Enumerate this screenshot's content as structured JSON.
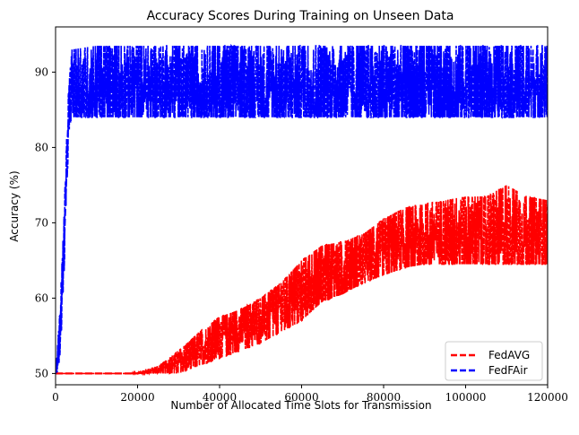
{
  "chart_data": {
    "type": "line",
    "title": "Accuracy Scores During Training on Unseen Data",
    "xlabel": "Number of Allocated Time Slots for Transmission",
    "ylabel": "Accuracy (%)",
    "xlim": [
      0,
      120000
    ],
    "ylim": [
      48.5,
      96.0
    ],
    "xticks": [
      0,
      20000,
      40000,
      60000,
      80000,
      100000,
      120000
    ],
    "xtick_labels": [
      "0",
      "20000",
      "40000",
      "60000",
      "80000",
      "100000",
      "120000"
    ],
    "yticks": [
      50,
      60,
      70,
      80,
      90
    ],
    "ytick_labels": [
      "50",
      "60",
      "70",
      "80",
      "90"
    ],
    "grid": false,
    "legend_position": "lower-right",
    "series": [
      {
        "name": "FedAVG",
        "color": "#ff0000",
        "style": "dashed",
        "x": [
          0,
          18000,
          20000,
          25000,
          30000,
          35000,
          40000,
          45000,
          50000,
          55000,
          60000,
          65000,
          70000,
          75000,
          80000,
          85000,
          90000,
          95000,
          100000,
          105000,
          110000,
          115000,
          120000
        ],
        "values": [
          50,
          50,
          50,
          50.5,
          51.5,
          53,
          55,
          56,
          57.5,
          59,
          61,
          63,
          64,
          65,
          66.5,
          67.5,
          68,
          68.5,
          68.5,
          68.5,
          68.5,
          68.5,
          68.5
        ],
        "band_low": [
          50,
          50,
          50,
          50,
          50,
          51,
          52,
          53,
          54,
          55.5,
          57,
          59.5,
          60.5,
          62,
          63,
          64,
          64.5,
          64.5,
          64.5,
          64.5,
          64.5,
          64.5,
          64.5
        ],
        "band_high": [
          50,
          50,
          50.3,
          51,
          53,
          55.5,
          57.5,
          58.5,
          60,
          62,
          65,
          67,
          67.5,
          68.5,
          70.5,
          72,
          72.5,
          73,
          73.5,
          73.5,
          75,
          73.5,
          73
        ]
      },
      {
        "name": "FedFAir",
        "color": "#0000ff",
        "style": "dashed",
        "x": [
          0,
          500,
          1000,
          1500,
          2000,
          2500,
          3000,
          3500,
          4000,
          10000,
          20000,
          40000,
          60000,
          80000,
          100000,
          120000
        ],
        "values": [
          50,
          52,
          55,
          60,
          66,
          74,
          82,
          86.5,
          88,
          88,
          88,
          88,
          88,
          88,
          88,
          88
        ],
        "band_low": [
          50,
          50,
          52,
          56,
          62,
          70,
          78,
          83,
          84,
          84,
          84,
          84,
          84,
          84,
          84,
          84
        ],
        "band_high": [
          51,
          54,
          58,
          64,
          70,
          78,
          86,
          90,
          93,
          93.5,
          93.5,
          93.5,
          93.5,
          93.5,
          93.5,
          93.5
        ]
      }
    ]
  }
}
